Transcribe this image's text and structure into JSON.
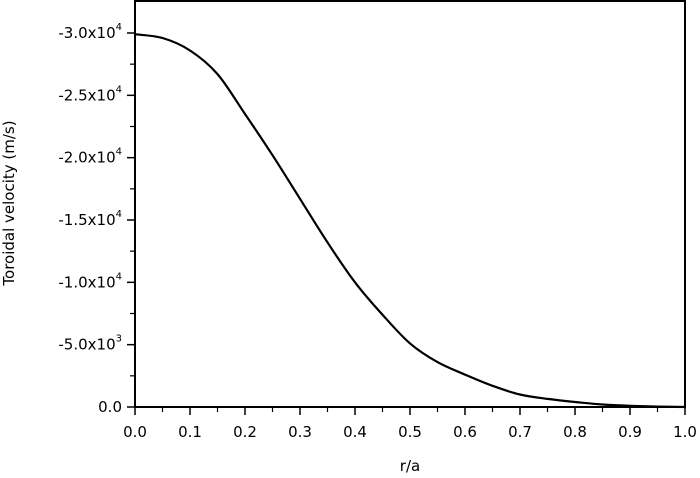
{
  "chart_data": {
    "type": "line",
    "title": "",
    "xlabel": "r/a",
    "ylabel": "Toroidal velocity (m/s)",
    "xlim": [
      0.0,
      1.0
    ],
    "ylim": [
      0,
      -32000
    ],
    "y_inverted": true,
    "grid": false,
    "legend": null,
    "x_ticks": [
      {
        "value": 0.0,
        "label": "0.0"
      },
      {
        "value": 0.1,
        "label": "0.1"
      },
      {
        "value": 0.2,
        "label": "0.2"
      },
      {
        "value": 0.3,
        "label": "0.3"
      },
      {
        "value": 0.4,
        "label": "0.4"
      },
      {
        "value": 0.5,
        "label": "0.5"
      },
      {
        "value": 0.6,
        "label": "0.6"
      },
      {
        "value": 0.7,
        "label": "0.7"
      },
      {
        "value": 0.8,
        "label": "0.8"
      },
      {
        "value": 0.9,
        "label": "0.9"
      },
      {
        "value": 1.0,
        "label": "1.0"
      }
    ],
    "y_ticks": [
      {
        "value": 0,
        "mantissa": "0.0",
        "exp": ""
      },
      {
        "value": -5000,
        "mantissa": "-5.0x10",
        "exp": "3"
      },
      {
        "value": -10000,
        "mantissa": "-1.0x10",
        "exp": "4"
      },
      {
        "value": -15000,
        "mantissa": "-1.5x10",
        "exp": "4"
      },
      {
        "value": -20000,
        "mantissa": "-2.0x10",
        "exp": "4"
      },
      {
        "value": -25000,
        "mantissa": "-2.5x10",
        "exp": "4"
      },
      {
        "value": -30000,
        "mantissa": "-3.0x10",
        "exp": "4"
      }
    ],
    "series": [
      {
        "name": "Toroidal velocity",
        "color": "#000000",
        "x": [
          0.0,
          0.05,
          0.1,
          0.15,
          0.2,
          0.25,
          0.3,
          0.35,
          0.4,
          0.45,
          0.5,
          0.55,
          0.6,
          0.65,
          0.7,
          0.75,
          0.8,
          0.85,
          0.9,
          0.95,
          1.0
        ],
        "values": [
          -29900,
          -29600,
          -28600,
          -26700,
          -23500,
          -20200,
          -16700,
          -13200,
          -10000,
          -7400,
          -5100,
          -3600,
          -2600,
          -1700,
          -1000,
          -650,
          -400,
          -200,
          -100,
          -30,
          0
        ]
      }
    ]
  }
}
